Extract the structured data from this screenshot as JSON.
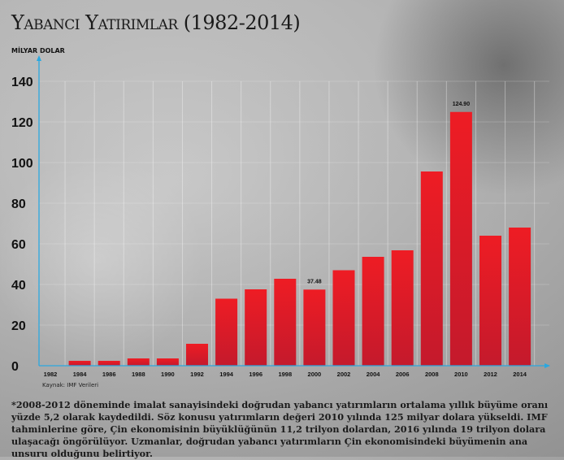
{
  "chart_data": {
    "type": "bar",
    "title": "Yabancı Yatırımlar (1982-2014)",
    "ylabel": "MİLYAR DOLAR",
    "xlabel": "",
    "ylim": [
      0,
      140
    ],
    "yticks": [
      0,
      20,
      40,
      60,
      80,
      100,
      120,
      140
    ],
    "categories": [
      "1982",
      "1984",
      "1986",
      "1988",
      "1990",
      "1992",
      "1994",
      "1996",
      "1998",
      "2000",
      "2002",
      "2004",
      "2006",
      "2008",
      "2010",
      "2012",
      "2014"
    ],
    "values": [
      0,
      2.4,
      2.4,
      3.6,
      3.6,
      10.8,
      33,
      37.6,
      42.8,
      37.48,
      47,
      53.6,
      56.8,
      95.6,
      124.9,
      64,
      68
    ],
    "data_labels": {
      "2000": "37.48",
      "2010": "124.90"
    },
    "grid": "vertical",
    "bar_color": "#e0202a",
    "axis_color": "#2aa8e0",
    "source": "Kaynak: IMF Verileri"
  },
  "note": "*2008-2012 döneminde imalat sanayisindeki doğrudan yabancı yatırımların ortalama yıllık büyüme oranı yüzde 5,2 olarak kaydedildi. Söz konusu yatırımların değeri 2010 yılında 125 milyar dolara yükseldi. IMF tahminlerine göre, Çin ekonomisinin büyüklüğünün 11,2 trilyon dolardan, 2016 yılında 19 trilyon dolara ulaşacağı öngörülüyor. Uzmanlar, doğrudan yabancı yatırımların Çin ekonomisindeki büyümenin ana unsuru olduğunu belirtiyor."
}
